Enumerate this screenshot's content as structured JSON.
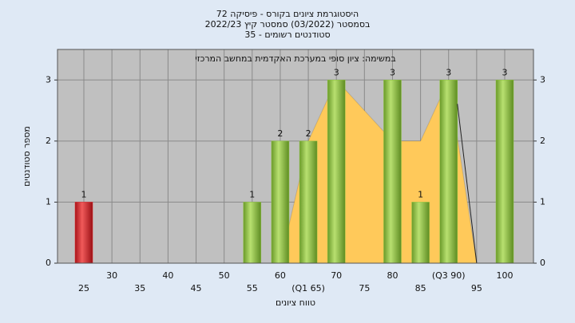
{
  "chart_data": {
    "type": "bar",
    "title": "היסטוגרמת ציונים בקורס - פיסיקה 72",
    "subtitle": "בסמסטר  (03/2022)  סמסטר קיץ 2022/23",
    "subtitle2": "סטודנטים רשומים - 35",
    "annotation": "במשימה: ציון סופי במערכת האקדמית במחשב המרכזי",
    "y_label": "מספר סטודנטים",
    "x_label": "טווח ציונים",
    "categories": [
      "25",
      "30",
      "35",
      "40",
      "45",
      "50",
      "55",
      "60",
      "(Q1 65)",
      "70",
      "75",
      "80",
      "85",
      "(Q3 90)",
      "95",
      "100"
    ],
    "values": [
      1,
      0,
      0,
      0,
      0,
      0,
      1,
      2,
      2,
      3,
      0,
      3,
      1,
      3,
      0,
      3
    ],
    "colors": [
      "#e0262b",
      "#8dc43f",
      "#8dc43f",
      "#8dc43f",
      "#8dc43f",
      "#8dc43f",
      "#8dc43f",
      "#8dc43f",
      "#8dc43f",
      "#8dc43f",
      "#8dc43f",
      "#8dc43f",
      "#8dc43f",
      "#8dc43f",
      "#8dc43f",
      "#8dc43f"
    ],
    "area_values": [
      null,
      null,
      null,
      null,
      null,
      null,
      null,
      0,
      2,
      3,
      2.5,
      2,
      2,
      3,
      0,
      null
    ],
    "area_color": "#ffc95a",
    "ylim": [
      0,
      3.5
    ],
    "yticks": [
      0,
      1,
      2,
      3
    ],
    "grid": true
  }
}
